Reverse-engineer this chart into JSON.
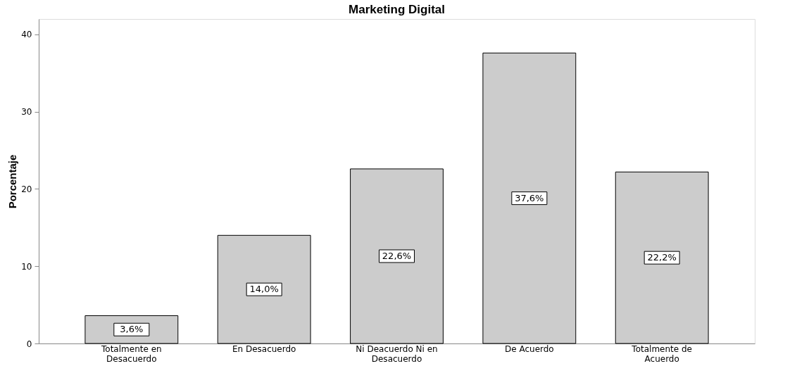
{
  "chart_data": {
    "type": "bar",
    "title": "Marketing Digital",
    "ylabel": "Porcentaje",
    "categories": [
      "Totalmente en\nDesacuerdo",
      "En Desacuerdo",
      "Ni Deacuerdo Ni en\nDesacuerdo",
      "De Acuerdo",
      "Totalmente de\nAcuerdo"
    ],
    "values": [
      3.6,
      14.0,
      22.6,
      37.6,
      22.2
    ],
    "value_labels": [
      "3,6%",
      "14,0%",
      "22,6%",
      "37,6%",
      "22,2%"
    ],
    "color": "#cccccc",
    "ylim": [
      0,
      42
    ],
    "yticks": [
      0,
      10,
      20,
      30,
      40
    ],
    "grid": false
  }
}
